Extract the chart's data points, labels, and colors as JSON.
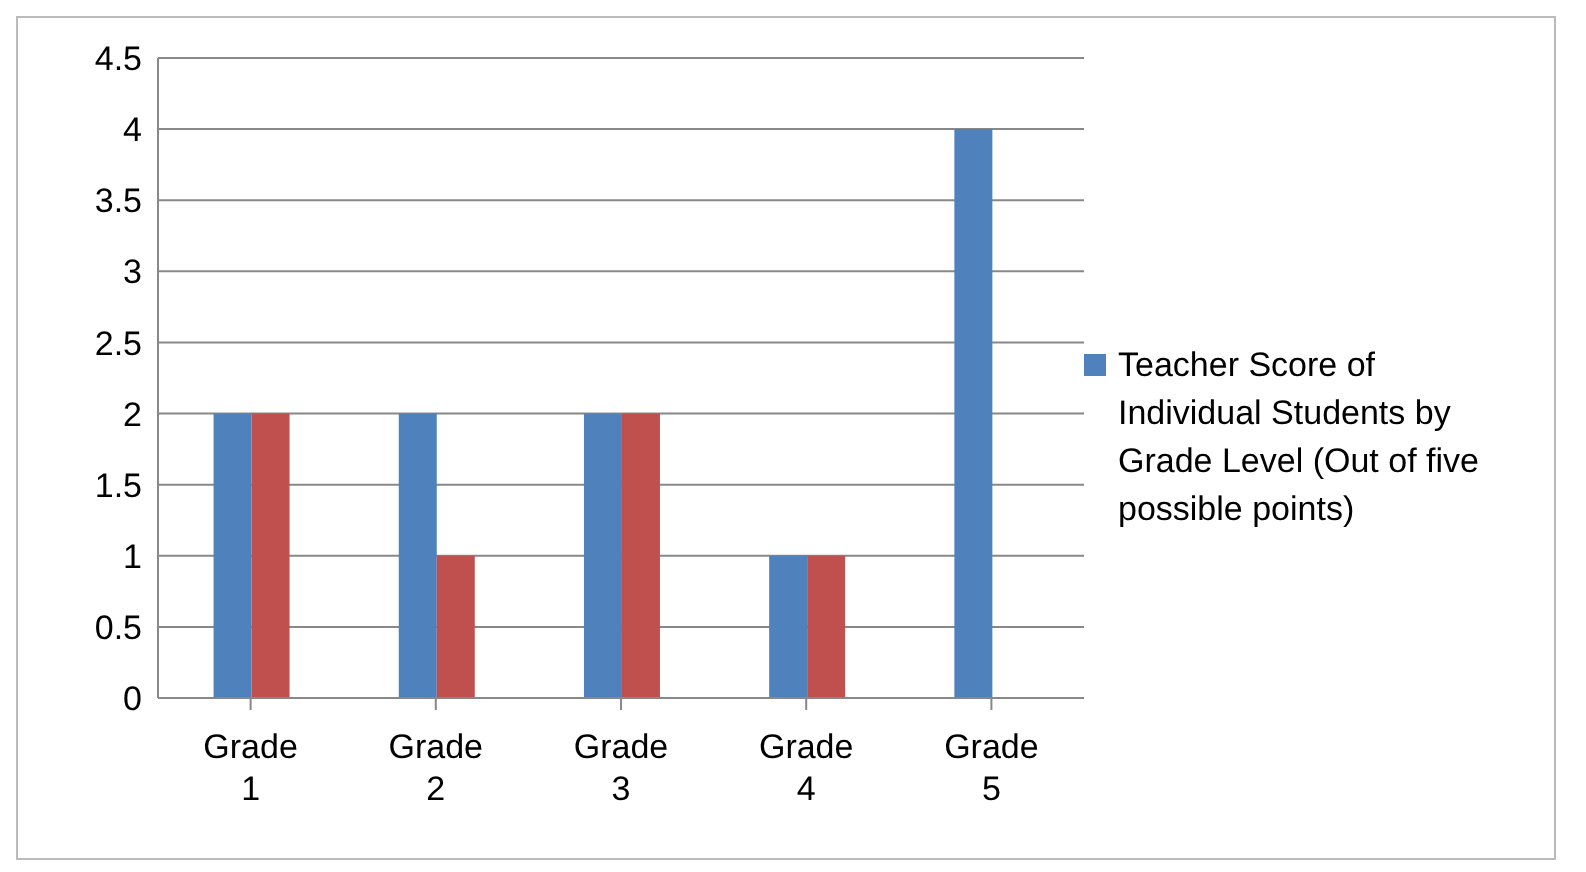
{
  "chart_data": {
    "type": "bar",
    "categories": [
      "Grade 1",
      "Grade 2",
      "Grade 3",
      "Grade 4",
      "Grade 5"
    ],
    "series": [
      {
        "name": "Teacher Score of Individual Students by Grade Level (Out of five possible points)",
        "color": "#4f81bd",
        "values": [
          2,
          2,
          2,
          1,
          4
        ]
      },
      {
        "color": "#c0504d",
        "values": [
          2,
          1,
          2,
          1,
          0
        ]
      }
    ],
    "ylim": [
      0,
      4.5
    ],
    "yticks": [
      0,
      0.5,
      1,
      1.5,
      2,
      2.5,
      3,
      3.5,
      4,
      4.5
    ],
    "grid": "y",
    "legend": "right"
  }
}
